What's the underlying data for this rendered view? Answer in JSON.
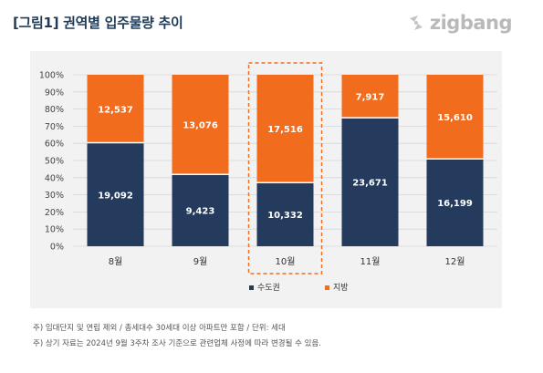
{
  "header": {
    "title": "[그림1] 권역별 입주물량 추이",
    "logo_text": "zigbang"
  },
  "notes": [
    "주) 임대단지 및 연립 제외 / 총세대수 30세대 이상 아파트만 포함 / 단위: 세대",
    "주) 상기 자료는 2024년 9월 3주차 조사 기준으로 관련업체 사정에 따라 변경될 수 있음."
  ],
  "colors": {
    "capital": "#243b5e",
    "regional": "#f26c1e",
    "highlight_border": "#f26c1e"
  },
  "chart_data": {
    "type": "bar",
    "stacked": true,
    "normalized": true,
    "title": "",
    "xlabel": "",
    "ylabel": "",
    "categories": [
      "8월",
      "9월",
      "10월",
      "11월",
      "12월"
    ],
    "series": [
      {
        "name": "수도권",
        "values": [
          19092,
          9423,
          10332,
          23671,
          16199
        ],
        "labels": [
          "19,092",
          "9,423",
          "10,332",
          "23,671",
          "16,199"
        ]
      },
      {
        "name": "지방",
        "values": [
          12537,
          13076,
          17516,
          7917,
          15610
        ],
        "labels": [
          "12,537",
          "13,076",
          "17,516",
          "7,917",
          "15,610"
        ]
      }
    ],
    "ylim": [
      0,
      100
    ],
    "yticks": [
      "0%",
      "10%",
      "20%",
      "30%",
      "40%",
      "50%",
      "60%",
      "70%",
      "80%",
      "90%",
      "100%"
    ],
    "grid": true,
    "legend_position": "bottom-center",
    "highlighted_category": "10월"
  }
}
